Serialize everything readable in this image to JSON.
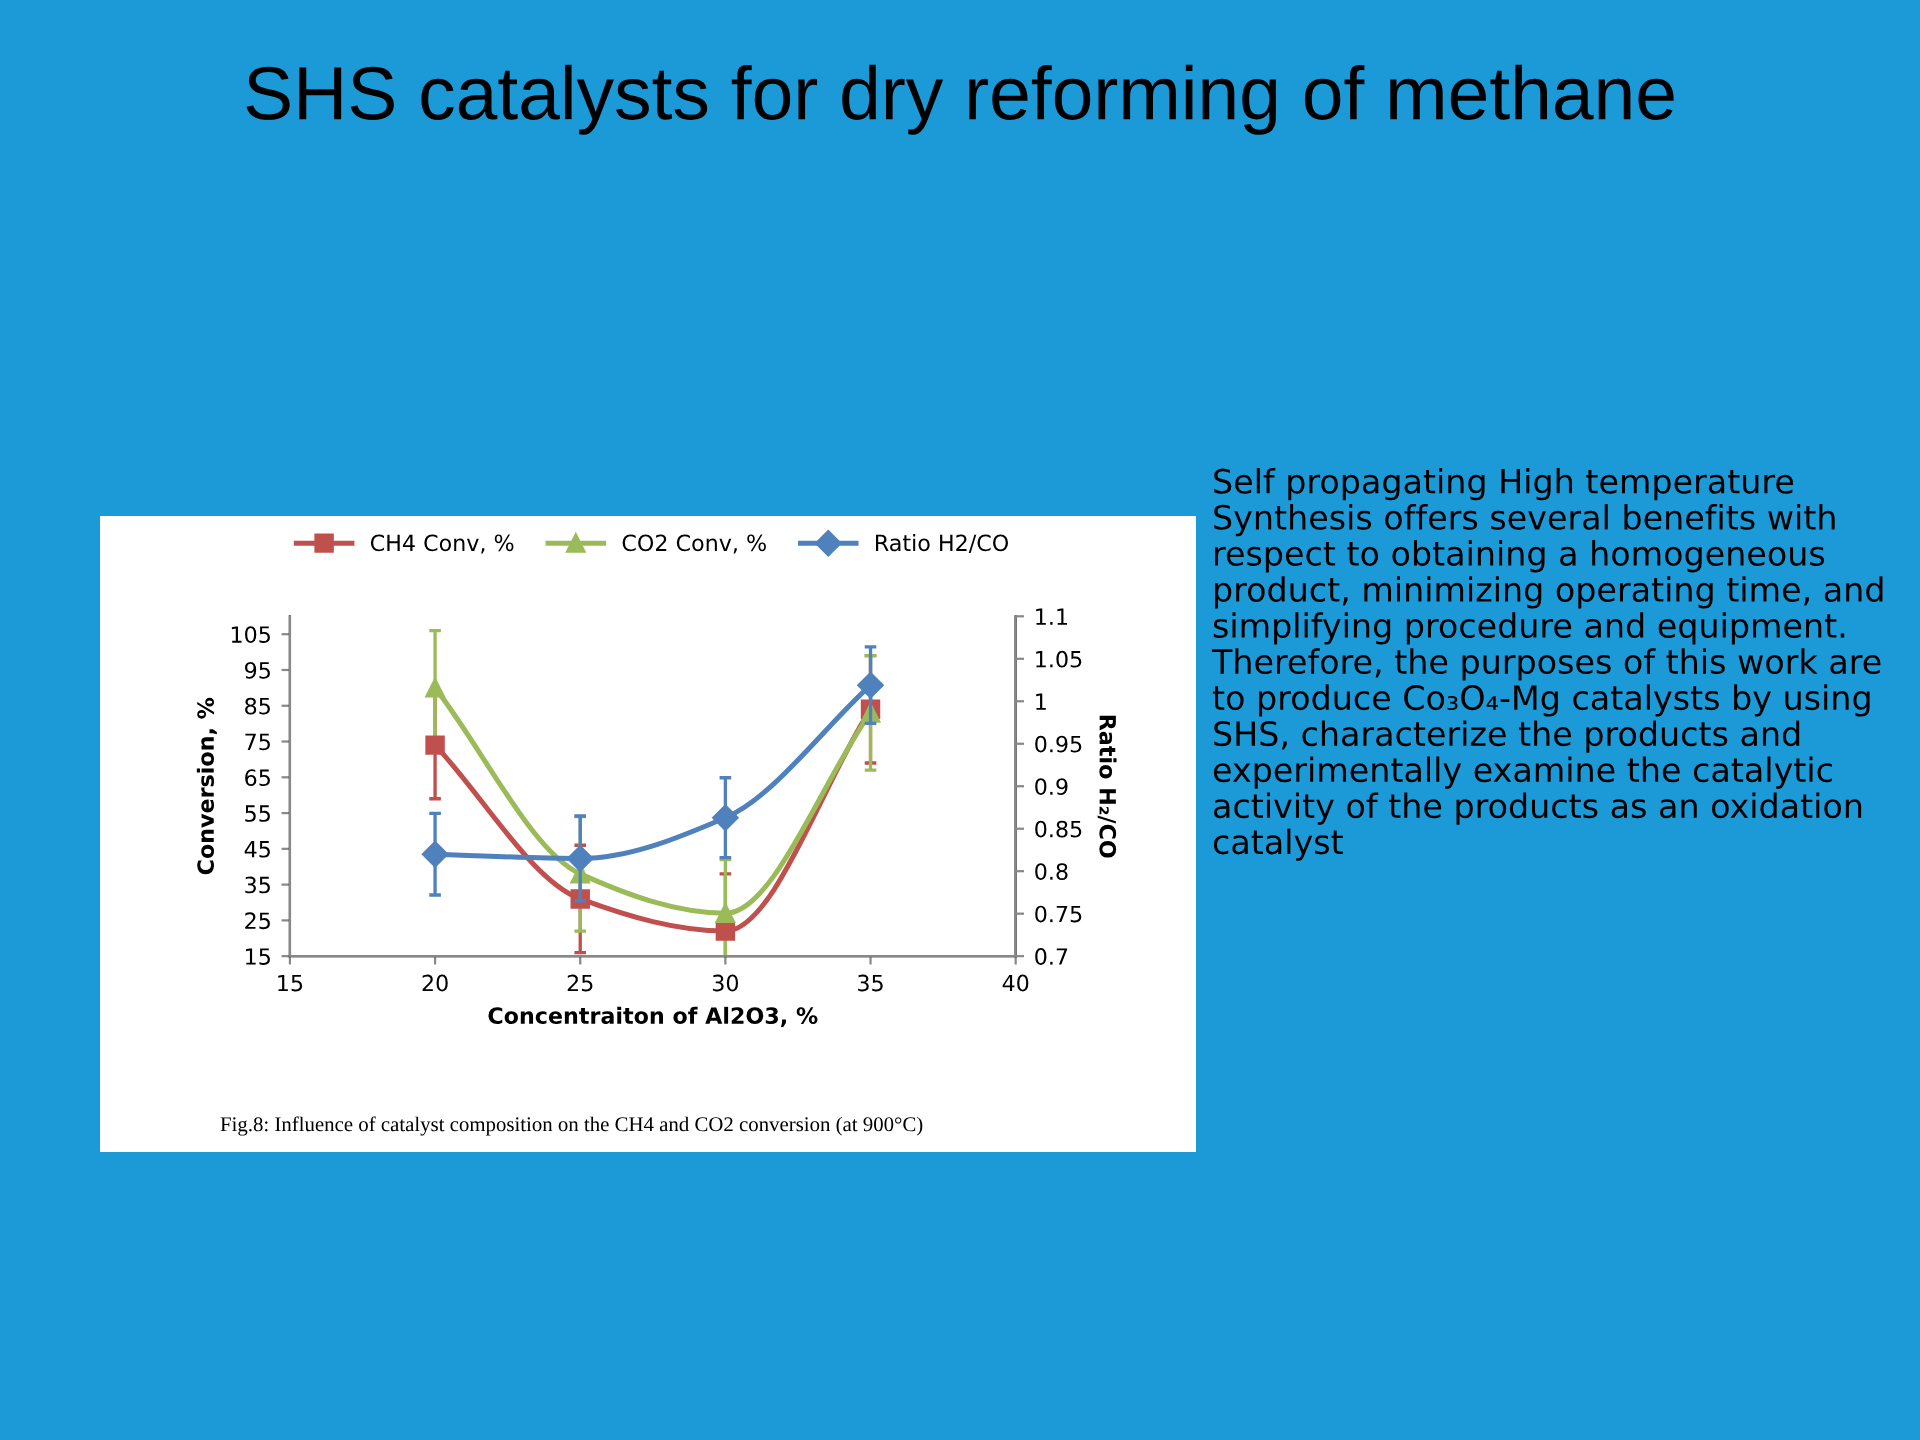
{
  "chart_data": {
    "type": "line",
    "title": "SHS catalysts for dry reforming of methane",
    "xlabel": "Concentraiton of Al2O3, %",
    "ylabel": "Conversion, %",
    "y2label": "Ratio H₂/CO",
    "x": [
      20,
      25,
      30,
      35
    ],
    "series": [
      {
        "name": "CH4 Conv, %",
        "color": "#c0504d",
        "marker": "square",
        "values": [
          74,
          31,
          22,
          84
        ],
        "errors": [
          15,
          15,
          16,
          15
        ]
      },
      {
        "name": "CO2 Conv, %",
        "color": "#9bbb59",
        "marker": "triangle",
        "values": [
          90,
          38,
          27,
          83
        ],
        "errors": [
          16,
          16,
          15,
          16
        ]
      },
      {
        "name": "Ratio H2/CO",
        "color": "#4f81bd",
        "marker": "diamond",
        "axis": "y2",
        "values": [
          0.82,
          0.815,
          0.863,
          1.019
        ],
        "errors": [
          0.048,
          0.05,
          0.047,
          0.045
        ]
      }
    ],
    "xlim": [
      15,
      40
    ],
    "xticks": [
      15,
      20,
      25,
      30,
      35,
      40
    ],
    "ylim": [
      15,
      110
    ],
    "yticks": [
      15,
      25,
      35,
      45,
      55,
      65,
      75,
      85,
      95,
      105
    ],
    "y2lim": [
      0.7,
      1.1
    ],
    "y2ticks": [
      0.7,
      0.75,
      0.8,
      0.85,
      0.9,
      0.95,
      1,
      1.05,
      1.1
    ],
    "grid": false,
    "legend": "top",
    "annotations": [
      "Fig.8: Influence of catalyst composition on the CH4 and CO2 conversion (at 900°C)",
      "Self propagating High temperature Synthesis offers several benefits with respect to obtaining a homogeneous product, minimizing operating time, and simplifying procedure and equipment. Therefore, the purposes of this work are to produce Co₃O₄-Mg catalysts by using SHS, characterize the products and experimentally examine the catalytic activity of the products as an oxidation catalyst"
    ]
  }
}
